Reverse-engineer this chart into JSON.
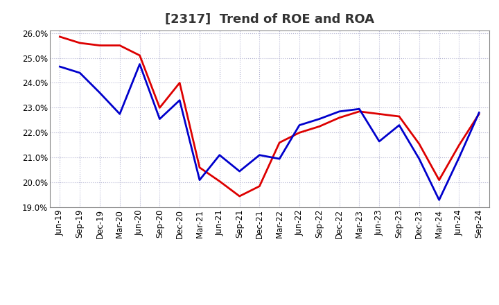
{
  "title": "[2317]  Trend of ROE and ROA",
  "ylim": [
    0.19,
    0.261
  ],
  "yticks": [
    0.19,
    0.2,
    0.21,
    0.22,
    0.23,
    0.24,
    0.25,
    0.26
  ],
  "x_labels": [
    "Jun-19",
    "Sep-19",
    "Dec-19",
    "Mar-20",
    "Jun-20",
    "Sep-20",
    "Dec-20",
    "Mar-21",
    "Jun-21",
    "Sep-21",
    "Dec-21",
    "Mar-22",
    "Jun-22",
    "Sep-22",
    "Dec-22",
    "Mar-23",
    "Jun-23",
    "Sep-23",
    "Dec-23",
    "Mar-24",
    "Jun-24",
    "Sep-24"
  ],
  "ROE": [
    0.2585,
    0.256,
    0.255,
    0.255,
    0.251,
    0.23,
    0.24,
    0.206,
    0.2005,
    0.1945,
    0.1985,
    0.216,
    0.22,
    0.2225,
    0.226,
    0.2285,
    0.2275,
    0.2265,
    0.2155,
    0.201,
    0.215,
    0.2275
  ],
  "ROA": [
    0.2465,
    0.244,
    0.236,
    0.2275,
    0.2475,
    0.2255,
    0.233,
    0.201,
    0.211,
    0.2045,
    0.211,
    0.2095,
    0.223,
    0.2255,
    0.2285,
    0.2295,
    0.2165,
    0.223,
    0.2095,
    0.193,
    0.21,
    0.228
  ],
  "roe_color": "#dd0000",
  "roa_color": "#0000cc",
  "line_width": 2.0,
  "bg_color": "#ffffff",
  "plot_bg_color": "#ffffff",
  "grid_color": "#aaaacc",
  "title_fontsize": 13,
  "tick_fontsize": 8.5,
  "legend_fontsize": 10
}
